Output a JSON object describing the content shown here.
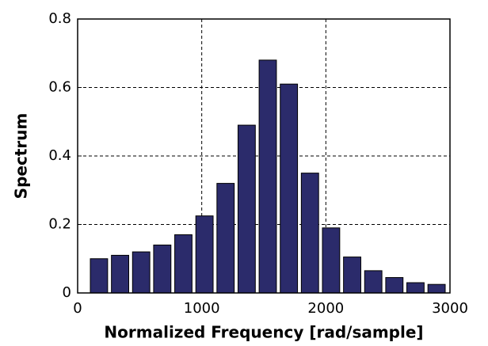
{
  "chart_data": {
    "type": "bar",
    "xlabel": "Normalized Frequency [rad/sample]",
    "ylabel": "Spectrum",
    "x": [
      172,
      342,
      512,
      682,
      852,
      1022,
      1192,
      1362,
      1532,
      1702,
      1872,
      2042,
      2212,
      2382,
      2552,
      2722,
      2892
    ],
    "values": [
      0.1,
      0.11,
      0.12,
      0.14,
      0.17,
      0.225,
      0.32,
      0.49,
      0.68,
      0.61,
      0.35,
      0.19,
      0.105,
      0.065,
      0.045,
      0.03,
      0.025
    ],
    "color": "#2b2b6b",
    "xlim": [
      0,
      3000
    ],
    "xticks": [
      0,
      1000,
      2000,
      3000
    ],
    "ylim": [
      0,
      0.8
    ],
    "yticks": [
      0,
      0.2,
      0.4,
      0.6,
      0.8
    ],
    "grid": true
  }
}
